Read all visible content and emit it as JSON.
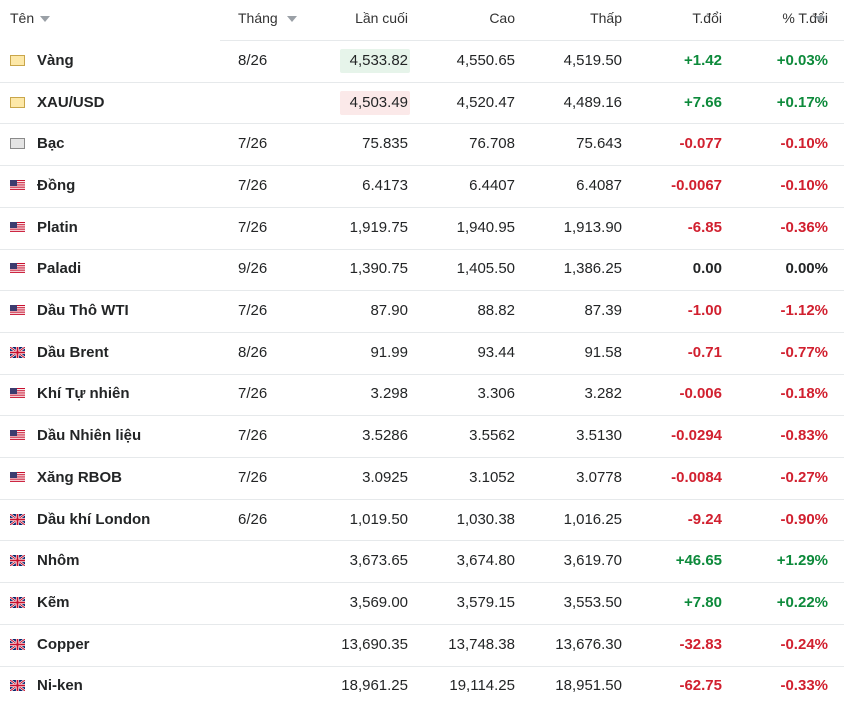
{
  "table": {
    "header": [
      "Tên",
      "Tháng",
      "Lần cuối",
      "Cao",
      "Thấp",
      "T.đổi",
      "% T.đổi"
    ],
    "rows": [
      [
        "Vàng",
        "8/26",
        "4,533.82",
        "4,550.65",
        "4,519.50",
        "+1.42",
        "+0.03%"
      ],
      [
        "XAU/USD",
        null,
        "4,503.49",
        "4,520.47",
        "4,489.16",
        "+7.66",
        "+0.17%"
      ],
      [
        "Bạc",
        "7/26",
        "75.835",
        "76.708",
        "75.643",
        "-0.077",
        "-0.10%"
      ],
      [
        "Đồng",
        "7/26",
        "6.4173",
        "6.4407",
        "6.4087",
        "-0.0067",
        "-0.10%"
      ],
      [
        "Platin",
        "7/26",
        "1,919.75",
        "1,940.95",
        "1,913.90",
        "-6.85",
        "-0.36%"
      ],
      [
        "Paladi",
        "9/26",
        "1,390.75",
        "1,405.50",
        "1,386.25",
        "0.00",
        "0.00%"
      ],
      [
        "Dầu Thô WTI",
        "7/26",
        "87.90",
        "88.82",
        "87.39",
        "-1.00",
        "-1.12%"
      ],
      [
        "Dầu Brent",
        "8/26",
        "91.99",
        "93.44",
        "91.58",
        "-0.71",
        "-0.77%"
      ],
      [
        "Khí Tự nhiên",
        "7/26",
        "3.298",
        "3.306",
        "3.282",
        "-0.006",
        "-0.18%"
      ],
      [
        "Dầu Nhiên liệu",
        "7/26",
        "3.5286",
        "3.5562",
        "3.5130",
        "-0.0294",
        "-0.83%"
      ],
      [
        "Xăng RBOB",
        "7/26",
        "3.0925",
        "3.1052",
        "3.0778",
        "-0.0084",
        "-0.27%"
      ],
      [
        "Dầu khí London",
        "6/26",
        "1,019.50",
        "1,030.38",
        "1,016.25",
        "-9.24",
        "-0.90%"
      ],
      [
        "Nhôm",
        null,
        "3,673.65",
        "3,674.80",
        "3,619.70",
        "+46.65",
        "+1.29%"
      ],
      [
        "Kẽm",
        null,
        "3,569.00",
        "3,579.15",
        "3,553.50",
        "+7.80",
        "+0.22%"
      ],
      [
        "Copper",
        null,
        "13,690.35",
        "13,748.38",
        "13,676.30",
        "-32.83",
        "-0.24%"
      ],
      [
        "Ni-ken",
        null,
        "18,961.25",
        "19,114.25",
        "18,951.50",
        "-62.75",
        "-0.33%"
      ]
    ]
  }
}
